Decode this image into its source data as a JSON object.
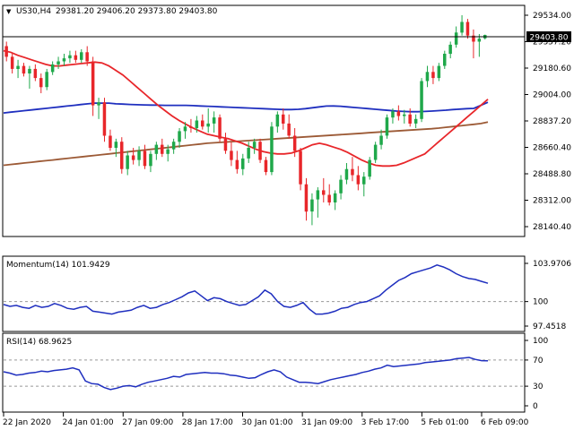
{
  "header": {
    "symbol": "US30,H4",
    "ohlc": "29381.20 29406.20 29373.80 29403.80",
    "price_badge": "29403.80"
  },
  "indicators": {
    "momentum_label": "Momentum(14) 101.9429",
    "rsi_label": "RSI(14) 68.9625"
  },
  "colors": {
    "bull": "#1fa84a",
    "bear": "#e8262a",
    "ma_fast": "#e8262a",
    "ma_mid": "#1f2fbf",
    "ma_slow": "#9c5a36",
    "indicator": "#1f2fbf"
  },
  "chart_data": [
    {
      "type": "candlestick",
      "x_tick_labels": [
        "22 Jan 2020",
        "24 Jan 01:00",
        "27 Jan 09:00",
        "28 Jan 17:00",
        "30 Jan 01:00",
        "31 Jan 09:00",
        "3 Feb 17:00",
        "5 Feb 01:00",
        "6 Feb 09:00"
      ],
      "y_tick_labels": [
        "29534.00",
        "29357.20",
        "29180.60",
        "29004.00",
        "28837.20",
        "28660.40",
        "28488.80",
        "28312.00",
        "28140.40"
      ],
      "ylim": [
        28140.4,
        29534.0
      ],
      "candles": [
        {
          "o": 29330,
          "h": 29360,
          "l": 29230,
          "c": 29260
        },
        {
          "o": 29260,
          "h": 29280,
          "l": 29150,
          "c": 29180
        },
        {
          "o": 29180,
          "h": 29240,
          "l": 29120,
          "c": 29200
        },
        {
          "o": 29200,
          "h": 29220,
          "l": 29130,
          "c": 29150
        },
        {
          "o": 29150,
          "h": 29200,
          "l": 29050,
          "c": 29180
        },
        {
          "o": 29180,
          "h": 29210,
          "l": 29100,
          "c": 29120
        },
        {
          "o": 29120,
          "h": 29150,
          "l": 29020,
          "c": 29060
        },
        {
          "o": 29060,
          "h": 29180,
          "l": 29040,
          "c": 29160
        },
        {
          "o": 29160,
          "h": 29230,
          "l": 29140,
          "c": 29210
        },
        {
          "o": 29210,
          "h": 29260,
          "l": 29180,
          "c": 29230
        },
        {
          "o": 29230,
          "h": 29280,
          "l": 29200,
          "c": 29250
        },
        {
          "o": 29250,
          "h": 29300,
          "l": 29220,
          "c": 29270
        },
        {
          "o": 29270,
          "h": 29300,
          "l": 29220,
          "c": 29240
        },
        {
          "o": 29240,
          "h": 29310,
          "l": 29220,
          "c": 29290
        },
        {
          "o": 29290,
          "h": 29330,
          "l": 29200,
          "c": 29230
        },
        {
          "o": 29230,
          "h": 29260,
          "l": 28870,
          "c": 28940
        },
        {
          "o": 28940,
          "h": 28990,
          "l": 28850,
          "c": 28960
        },
        {
          "o": 28960,
          "h": 28990,
          "l": 28700,
          "c": 28740
        },
        {
          "o": 28740,
          "h": 28780,
          "l": 28640,
          "c": 28660
        },
        {
          "o": 28660,
          "h": 28720,
          "l": 28600,
          "c": 28700
        },
        {
          "o": 28700,
          "h": 28730,
          "l": 28490,
          "c": 28520
        },
        {
          "o": 28520,
          "h": 28640,
          "l": 28480,
          "c": 28610
        },
        {
          "o": 28610,
          "h": 28660,
          "l": 28550,
          "c": 28580
        },
        {
          "o": 28580,
          "h": 28670,
          "l": 28540,
          "c": 28640
        },
        {
          "o": 28640,
          "h": 28680,
          "l": 28520,
          "c": 28540
        },
        {
          "o": 28540,
          "h": 28640,
          "l": 28500,
          "c": 28620
        },
        {
          "o": 28620,
          "h": 28700,
          "l": 28580,
          "c": 28680
        },
        {
          "o": 28680,
          "h": 28720,
          "l": 28600,
          "c": 28620
        },
        {
          "o": 28620,
          "h": 28680,
          "l": 28570,
          "c": 28650
        },
        {
          "o": 28650,
          "h": 28720,
          "l": 28620,
          "c": 28700
        },
        {
          "o": 28700,
          "h": 28790,
          "l": 28660,
          "c": 28770
        },
        {
          "o": 28770,
          "h": 28830,
          "l": 28720,
          "c": 28800
        },
        {
          "o": 28800,
          "h": 28850,
          "l": 28760,
          "c": 28790
        },
        {
          "o": 28790,
          "h": 28870,
          "l": 28760,
          "c": 28840
        },
        {
          "o": 28840,
          "h": 28880,
          "l": 28780,
          "c": 28800
        },
        {
          "o": 28800,
          "h": 28920,
          "l": 28760,
          "c": 28820
        },
        {
          "o": 28820,
          "h": 28900,
          "l": 28760,
          "c": 28860
        },
        {
          "o": 28860,
          "h": 28880,
          "l": 28700,
          "c": 28720
        },
        {
          "o": 28720,
          "h": 28760,
          "l": 28620,
          "c": 28640
        },
        {
          "o": 28640,
          "h": 28700,
          "l": 28540,
          "c": 28580
        },
        {
          "o": 28580,
          "h": 28640,
          "l": 28490,
          "c": 28520
        },
        {
          "o": 28520,
          "h": 28620,
          "l": 28480,
          "c": 28590
        },
        {
          "o": 28590,
          "h": 28700,
          "l": 28560,
          "c": 28660
        },
        {
          "o": 28660,
          "h": 28720,
          "l": 28620,
          "c": 28700
        },
        {
          "o": 28700,
          "h": 28720,
          "l": 28560,
          "c": 28580
        },
        {
          "o": 28580,
          "h": 28600,
          "l": 28480,
          "c": 28500
        },
        {
          "o": 28500,
          "h": 28830,
          "l": 28480,
          "c": 28800
        },
        {
          "o": 28800,
          "h": 28900,
          "l": 28760,
          "c": 28880
        },
        {
          "o": 28880,
          "h": 28920,
          "l": 28780,
          "c": 28820
        },
        {
          "o": 28820,
          "h": 28880,
          "l": 28720,
          "c": 28740
        },
        {
          "o": 28740,
          "h": 28790,
          "l": 28600,
          "c": 28640
        },
        {
          "o": 28640,
          "h": 28660,
          "l": 28380,
          "c": 28420
        },
        {
          "o": 28420,
          "h": 28460,
          "l": 28180,
          "c": 28240
        },
        {
          "o": 28240,
          "h": 28360,
          "l": 28150,
          "c": 28320
        },
        {
          "o": 28320,
          "h": 28400,
          "l": 28200,
          "c": 28380
        },
        {
          "o": 28380,
          "h": 28460,
          "l": 28300,
          "c": 28350
        },
        {
          "o": 28350,
          "h": 28420,
          "l": 28280,
          "c": 28300
        },
        {
          "o": 28300,
          "h": 28380,
          "l": 28250,
          "c": 28360
        },
        {
          "o": 28360,
          "h": 28480,
          "l": 28320,
          "c": 28450
        },
        {
          "o": 28450,
          "h": 28560,
          "l": 28420,
          "c": 28520
        },
        {
          "o": 28520,
          "h": 28600,
          "l": 28440,
          "c": 28480
        },
        {
          "o": 28480,
          "h": 28540,
          "l": 28380,
          "c": 28420
        },
        {
          "o": 28420,
          "h": 28500,
          "l": 28340,
          "c": 28470
        },
        {
          "o": 28470,
          "h": 28600,
          "l": 28450,
          "c": 28580
        },
        {
          "o": 28580,
          "h": 28700,
          "l": 28560,
          "c": 28680
        },
        {
          "o": 28680,
          "h": 28780,
          "l": 28650,
          "c": 28740
        },
        {
          "o": 28740,
          "h": 28880,
          "l": 28720,
          "c": 28860
        },
        {
          "o": 28860,
          "h": 28920,
          "l": 28820,
          "c": 28900
        },
        {
          "o": 28900,
          "h": 28940,
          "l": 28840,
          "c": 28870
        },
        {
          "o": 28870,
          "h": 28910,
          "l": 28820,
          "c": 28880
        },
        {
          "o": 28880,
          "h": 28920,
          "l": 28800,
          "c": 28820
        },
        {
          "o": 28820,
          "h": 28880,
          "l": 28790,
          "c": 28850
        },
        {
          "o": 28850,
          "h": 29120,
          "l": 28830,
          "c": 29100
        },
        {
          "o": 29100,
          "h": 29200,
          "l": 29060,
          "c": 29160
        },
        {
          "o": 29160,
          "h": 29200,
          "l": 29080,
          "c": 29120
        },
        {
          "o": 29120,
          "h": 29220,
          "l": 29100,
          "c": 29200
        },
        {
          "o": 29200,
          "h": 29300,
          "l": 29180,
          "c": 29280
        },
        {
          "o": 29280,
          "h": 29360,
          "l": 29250,
          "c": 29340
        },
        {
          "o": 29340,
          "h": 29460,
          "l": 29320,
          "c": 29420
        },
        {
          "o": 29420,
          "h": 29534,
          "l": 29400,
          "c": 29490
        },
        {
          "o": 29490,
          "h": 29510,
          "l": 29380,
          "c": 29400
        },
        {
          "o": 29400,
          "h": 29440,
          "l": 29250,
          "c": 29360
        },
        {
          "o": 29360,
          "h": 29410,
          "l": 29260,
          "c": 29380
        },
        {
          "o": 29381.2,
          "h": 29406.2,
          "l": 29373.8,
          "c": 29403.8
        }
      ],
      "ma_fast": [
        29300,
        29290,
        29270,
        29255,
        29240,
        29225,
        29210,
        29200,
        29200,
        29205,
        29210,
        29215,
        29220,
        29225,
        29220,
        29200,
        29170,
        29140,
        29100,
        29060,
        29020,
        28980,
        28940,
        28905,
        28870,
        28840,
        28815,
        28790,
        28770,
        28750,
        28740,
        28730,
        28720,
        28705,
        28690,
        28670,
        28650,
        28635,
        28625,
        28620,
        28620,
        28625,
        28640,
        28660,
        28680,
        28690,
        28680,
        28665,
        28650,
        28630,
        28605,
        28580,
        28560,
        28545,
        28540,
        28540,
        28545,
        28560,
        28580,
        28600,
        28620,
        28660,
        28700,
        28740,
        28780,
        28820,
        28860,
        28900,
        28940,
        28980
      ],
      "ma_mid": [
        28890,
        28895,
        28900,
        28905,
        28910,
        28915,
        28920,
        28925,
        28930,
        28935,
        28940,
        28945,
        28950,
        28955,
        28955,
        28955,
        28950,
        28948,
        28946,
        28944,
        28943,
        28942,
        28941,
        28940,
        28940,
        28940,
        28940,
        28938,
        28936,
        28934,
        28932,
        28930,
        28928,
        28926,
        28924,
        28922,
        28920,
        28918,
        28916,
        28914,
        28912,
        28912,
        28914,
        28918,
        28924,
        28930,
        28935,
        28936,
        28934,
        28930,
        28926,
        28922,
        28918,
        28914,
        28910,
        28906,
        28902,
        28900,
        28898,
        28898,
        28900,
        28902,
        28905,
        28908,
        28912,
        28915,
        28918,
        28920,
        28940,
        28960
      ],
      "ma_slow": [
        28545,
        28550,
        28555,
        28560,
        28565,
        28570,
        28575,
        28580,
        28585,
        28590,
        28595,
        28600,
        28605,
        28610,
        28615,
        28620,
        28625,
        28630,
        28635,
        28640,
        28645,
        28650,
        28655,
        28660,
        28665,
        28670,
        28675,
        28680,
        28685,
        28690,
        28693,
        28696,
        28699,
        28702,
        28705,
        28708,
        28711,
        28714,
        28717,
        28720,
        28723,
        28726,
        28729,
        28732,
        28735,
        28738,
        28741,
        28744,
        28747,
        28750,
        28753,
        28756,
        28759,
        28762,
        28765,
        28768,
        28771,
        28774,
        28777,
        28780,
        28783,
        28786,
        28790,
        28795,
        28800,
        28805,
        28810,
        28815,
        28820,
        28830
      ]
    },
    {
      "type": "line",
      "title": "Momentum(14) 101.9429",
      "y_tick_labels": [
        "103.9706",
        "100",
        "97.4518"
      ],
      "ylim": [
        97.4518,
        103.9706
      ],
      "reference_line": 100,
      "values": [
        99.7,
        99.5,
        99.6,
        99.4,
        99.3,
        99.6,
        99.4,
        99.5,
        99.8,
        99.6,
        99.3,
        99.2,
        99.4,
        99.5,
        99.0,
        98.9,
        98.8,
        98.7,
        98.9,
        99.0,
        99.1,
        99.4,
        99.6,
        99.3,
        99.4,
        99.7,
        99.9,
        100.2,
        100.5,
        100.9,
        101.1,
        100.6,
        100.1,
        100.4,
        100.3,
        100.0,
        99.8,
        99.6,
        99.7,
        100.1,
        100.5,
        101.2,
        100.8,
        100.0,
        99.5,
        99.4,
        99.6,
        99.9,
        99.2,
        98.7,
        98.7,
        98.8,
        99.0,
        99.3,
        99.4,
        99.7,
        99.9,
        100.0,
        100.3,
        100.6,
        101.2,
        101.7,
        102.2,
        102.5,
        102.9,
        103.1,
        103.3,
        103.5,
        103.8,
        103.6,
        103.3,
        102.9,
        102.6,
        102.4,
        102.3,
        102.1,
        101.9
      ]
    },
    {
      "type": "line",
      "title": "RSI(14) 68.9625",
      "y_tick_labels": [
        "100",
        "70",
        "30",
        "0"
      ],
      "ylim": [
        0,
        100
      ],
      "reference_lines": [
        70,
        30
      ],
      "values": [
        52,
        50,
        47,
        48,
        50,
        51,
        53,
        52,
        54,
        55,
        56,
        58,
        55,
        38,
        34,
        33,
        28,
        25,
        27,
        30,
        31,
        29,
        33,
        36,
        38,
        40,
        42,
        45,
        44,
        48,
        49,
        50,
        51,
        50,
        50,
        49,
        47,
        46,
        44,
        42,
        43,
        48,
        52,
        55,
        52,
        44,
        40,
        36,
        36,
        35,
        34,
        37,
        40,
        42,
        44,
        46,
        48,
        51,
        53,
        56,
        58,
        62,
        60,
        61,
        62,
        63,
        64,
        66,
        67,
        68,
        69,
        70,
        72,
        73,
        74,
        71,
        69,
        68.9625
      ]
    }
  ]
}
